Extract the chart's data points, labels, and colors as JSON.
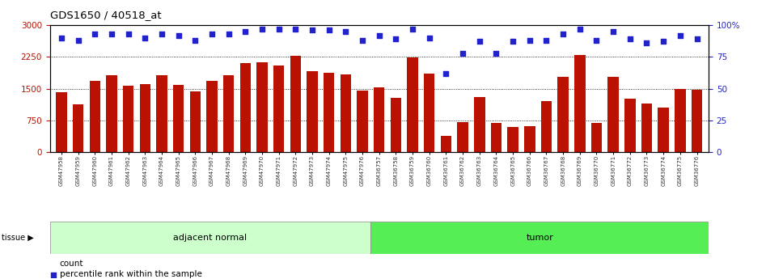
{
  "title": "GDS1650 / 40518_at",
  "bar_color": "#bb1100",
  "dot_color": "#2222cc",
  "categories": [
    "GSM47958",
    "GSM47959",
    "GSM47960",
    "GSM47961",
    "GSM47962",
    "GSM47963",
    "GSM47964",
    "GSM47965",
    "GSM47966",
    "GSM47967",
    "GSM47968",
    "GSM47969",
    "GSM47970",
    "GSM47971",
    "GSM47972",
    "GSM47973",
    "GSM47974",
    "GSM47975",
    "GSM47976",
    "GSM36757",
    "GSM36758",
    "GSM36759",
    "GSM36760",
    "GSM36761",
    "GSM36762",
    "GSM36763",
    "GSM36764",
    "GSM36765",
    "GSM36766",
    "GSM36767",
    "GSM36768",
    "GSM36769",
    "GSM36770",
    "GSM36771",
    "GSM36772",
    "GSM36773",
    "GSM36774",
    "GSM36775",
    "GSM36776"
  ],
  "bar_values": [
    1420,
    1120,
    1680,
    1820,
    1570,
    1610,
    1820,
    1590,
    1440,
    1680,
    1810,
    2100,
    2130,
    2050,
    2270,
    1910,
    1870,
    1840,
    1450,
    1520,
    1280,
    2230,
    1860,
    390,
    710,
    1300,
    680,
    590,
    620,
    1200,
    1780,
    2290,
    680,
    1780,
    1260,
    1150,
    1060,
    1500,
    1480
  ],
  "percentile_values": [
    90,
    88,
    93,
    93,
    93,
    90,
    93,
    92,
    88,
    93,
    93,
    95,
    97,
    97,
    97,
    96,
    96,
    95,
    88,
    92,
    89,
    97,
    90,
    62,
    78,
    87,
    78,
    87,
    88,
    88,
    93,
    97,
    88,
    95,
    89,
    86,
    87,
    92,
    89
  ],
  "group1_label": "adjacent normal",
  "group2_label": "tumor",
  "group1_count": 19,
  "group2_count": 20,
  "group1_color": "#ccffcc",
  "group2_color": "#55ee55",
  "tissue_label": "tissue",
  "legend1": "count",
  "legend2": "percentile rank within the sample",
  "ylim_left": [
    0,
    3000
  ],
  "ylim_right": [
    0,
    100
  ],
  "yticks_left": [
    0,
    750,
    1500,
    2250,
    3000
  ],
  "yticks_right": [
    0,
    25,
    50,
    75,
    100
  ],
  "bg_color": "#ffffff",
  "xticklabel_fontsize": 5.0,
  "yticklabel_fontsize": 7.5
}
